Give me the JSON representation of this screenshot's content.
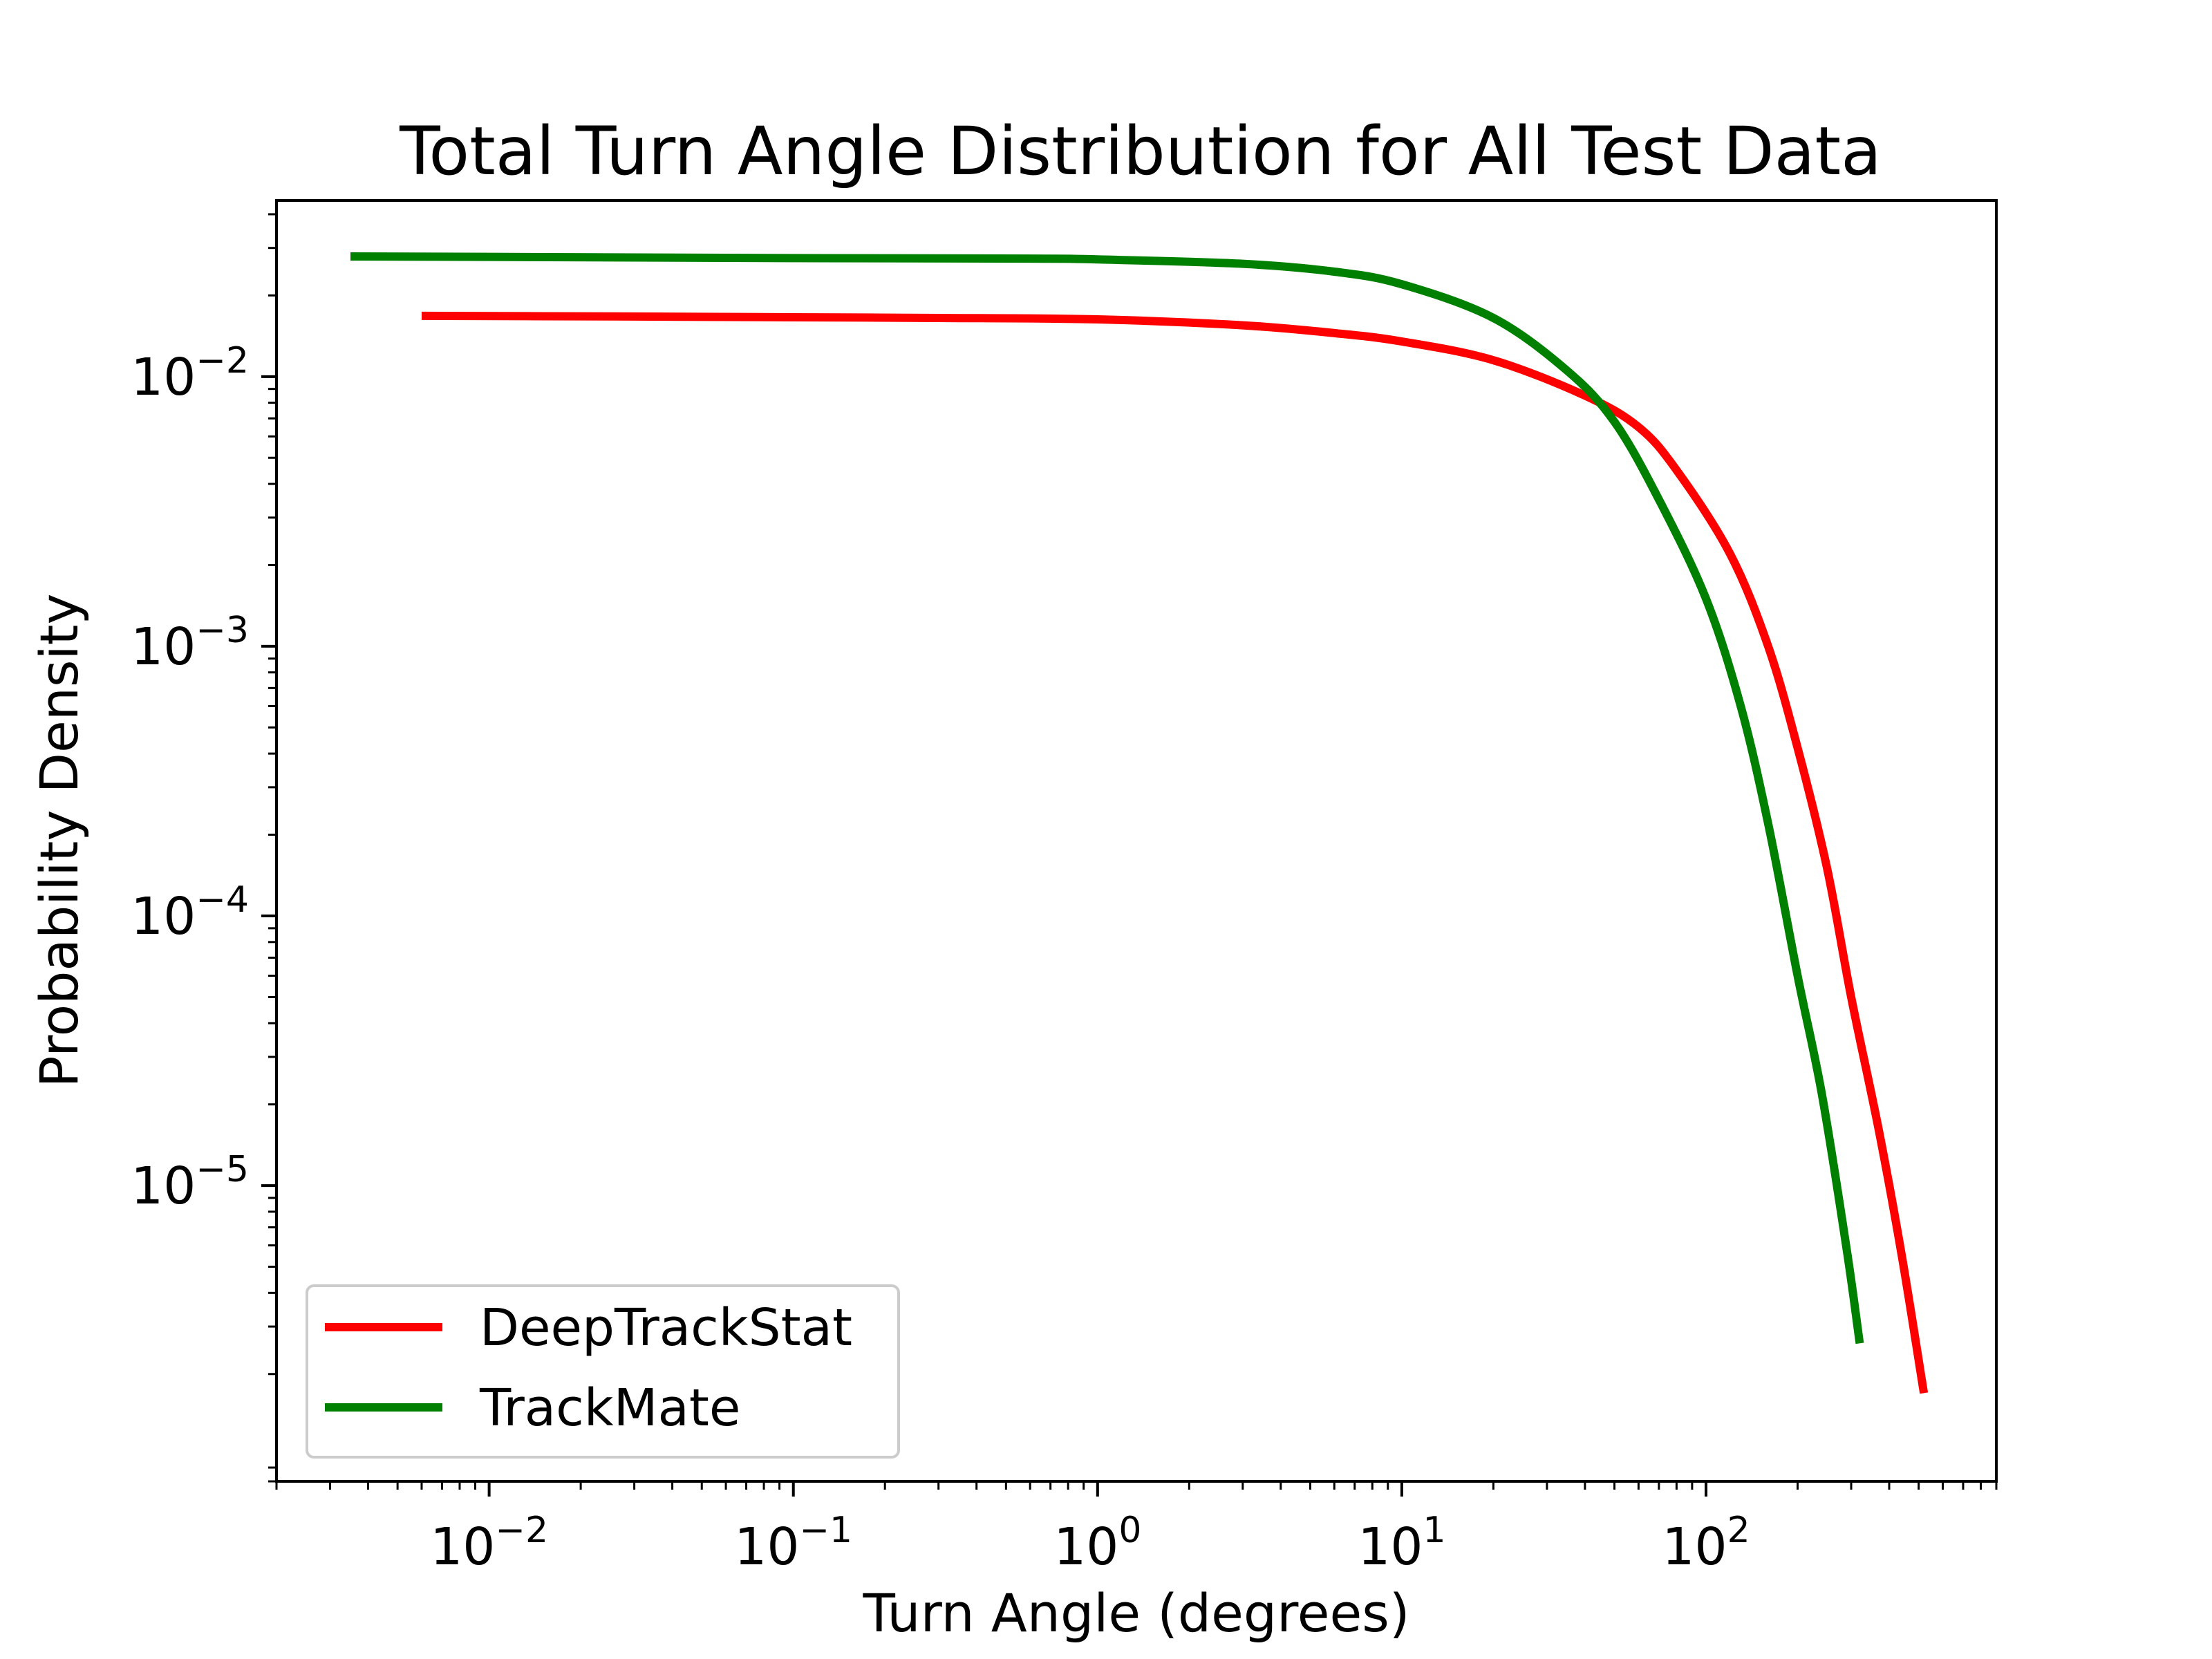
{
  "chart_data": {
    "type": "line",
    "title": "Total Turn Angle Distribution for All Test Data",
    "xlabel": "Turn Angle (degrees)",
    "ylabel": "Probability Density",
    "xscale": "log",
    "yscale": "log",
    "xlim": [
      0.002,
      900
    ],
    "ylim": [
      8e-07,
      0.045
    ],
    "grid": false,
    "legend_position": "lower-left",
    "x_ticks": [
      {
        "value": 0.01,
        "base": "10",
        "exp": "−2"
      },
      {
        "value": 0.1,
        "base": "10",
        "exp": "−1"
      },
      {
        "value": 1,
        "base": "10",
        "exp": "0"
      },
      {
        "value": 10,
        "base": "10",
        "exp": "1"
      },
      {
        "value": 100,
        "base": "10",
        "exp": "2"
      }
    ],
    "y_ticks": [
      {
        "value": 0.01,
        "base": "10",
        "exp": "−2"
      },
      {
        "value": 0.001,
        "base": "10",
        "exp": "−3"
      },
      {
        "value": 0.0001,
        "base": "10",
        "exp": "−4"
      },
      {
        "value": 1e-05,
        "base": "10",
        "exp": "−5"
      }
    ],
    "series": [
      {
        "name": "DeepTrackStat",
        "color": "#ff0000",
        "points": [
          [
            0.006,
            0.0168
          ],
          [
            0.03,
            0.0167
          ],
          [
            0.1,
            0.0166
          ],
          [
            0.3,
            0.0165
          ],
          [
            1,
            0.0163
          ],
          [
            3,
            0.0155
          ],
          [
            6,
            0.0145
          ],
          [
            10,
            0.0135
          ],
          [
            20,
            0.0115
          ],
          [
            40,
            0.0085
          ],
          [
            60,
            0.0065
          ],
          [
            80,
            0.0045
          ],
          [
            120,
            0.0022
          ],
          [
            160,
            0.001
          ],
          [
            200,
            0.00042
          ],
          [
            250,
            0.00015
          ],
          [
            300,
            5e-05
          ],
          [
            370,
            1.6e-05
          ],
          [
            440,
            5.5e-06
          ],
          [
            520,
            1.7e-06
          ]
        ]
      },
      {
        "name": "TrackMate",
        "color": "#008000",
        "points": [
          [
            0.0035,
            0.0279
          ],
          [
            0.01,
            0.0278
          ],
          [
            0.1,
            0.0275
          ],
          [
            0.6,
            0.0274
          ],
          [
            1,
            0.0272
          ],
          [
            3,
            0.0262
          ],
          [
            6,
            0.0245
          ],
          [
            10,
            0.022
          ],
          [
            20,
            0.0165
          ],
          [
            35,
            0.0105
          ],
          [
            50,
            0.0068
          ],
          [
            70,
            0.0035
          ],
          [
            100,
            0.0015
          ],
          [
            130,
            0.0006
          ],
          [
            160,
            0.00022
          ],
          [
            200,
            6e-05
          ],
          [
            240,
            2.2e-05
          ],
          [
            290,
            5.8e-06
          ],
          [
            320,
            2.6e-06
          ]
        ]
      }
    ]
  }
}
